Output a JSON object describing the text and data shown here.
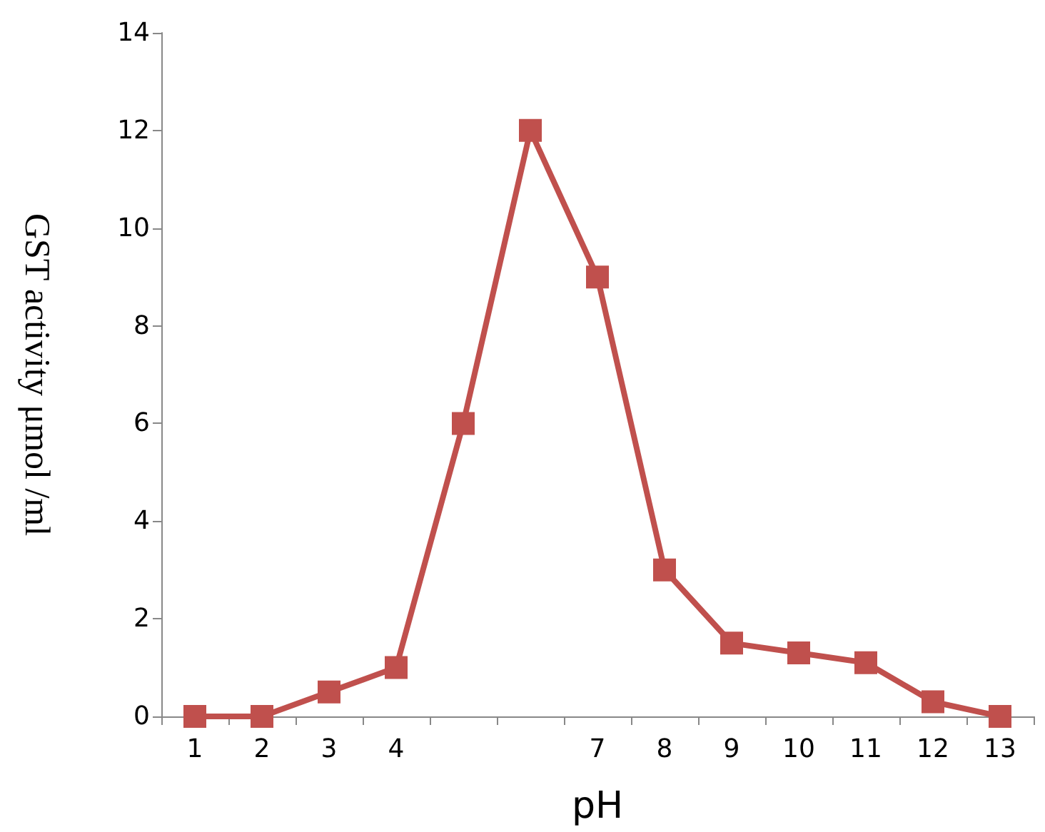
{
  "chart_data": {
    "type": "line",
    "xlabel": "pH",
    "ylabel": "GST activity μmol /ml",
    "categories": [
      "1",
      "2",
      "3",
      "4",
      null,
      null,
      "7",
      "8",
      "9",
      "10",
      "11",
      "12",
      "13"
    ],
    "series": [
      {
        "color": "#c0504d",
        "values": [
          0,
          0,
          0.5,
          1,
          6,
          12,
          9,
          3,
          1.5,
          1.3,
          1.1,
          0.3,
          0
        ]
      }
    ],
    "ylim": [
      0,
      14
    ],
    "yticks": [
      0,
      2,
      4,
      6,
      8,
      10,
      12,
      14
    ],
    "grid": false,
    "marker": "square",
    "line_style": "solid"
  }
}
